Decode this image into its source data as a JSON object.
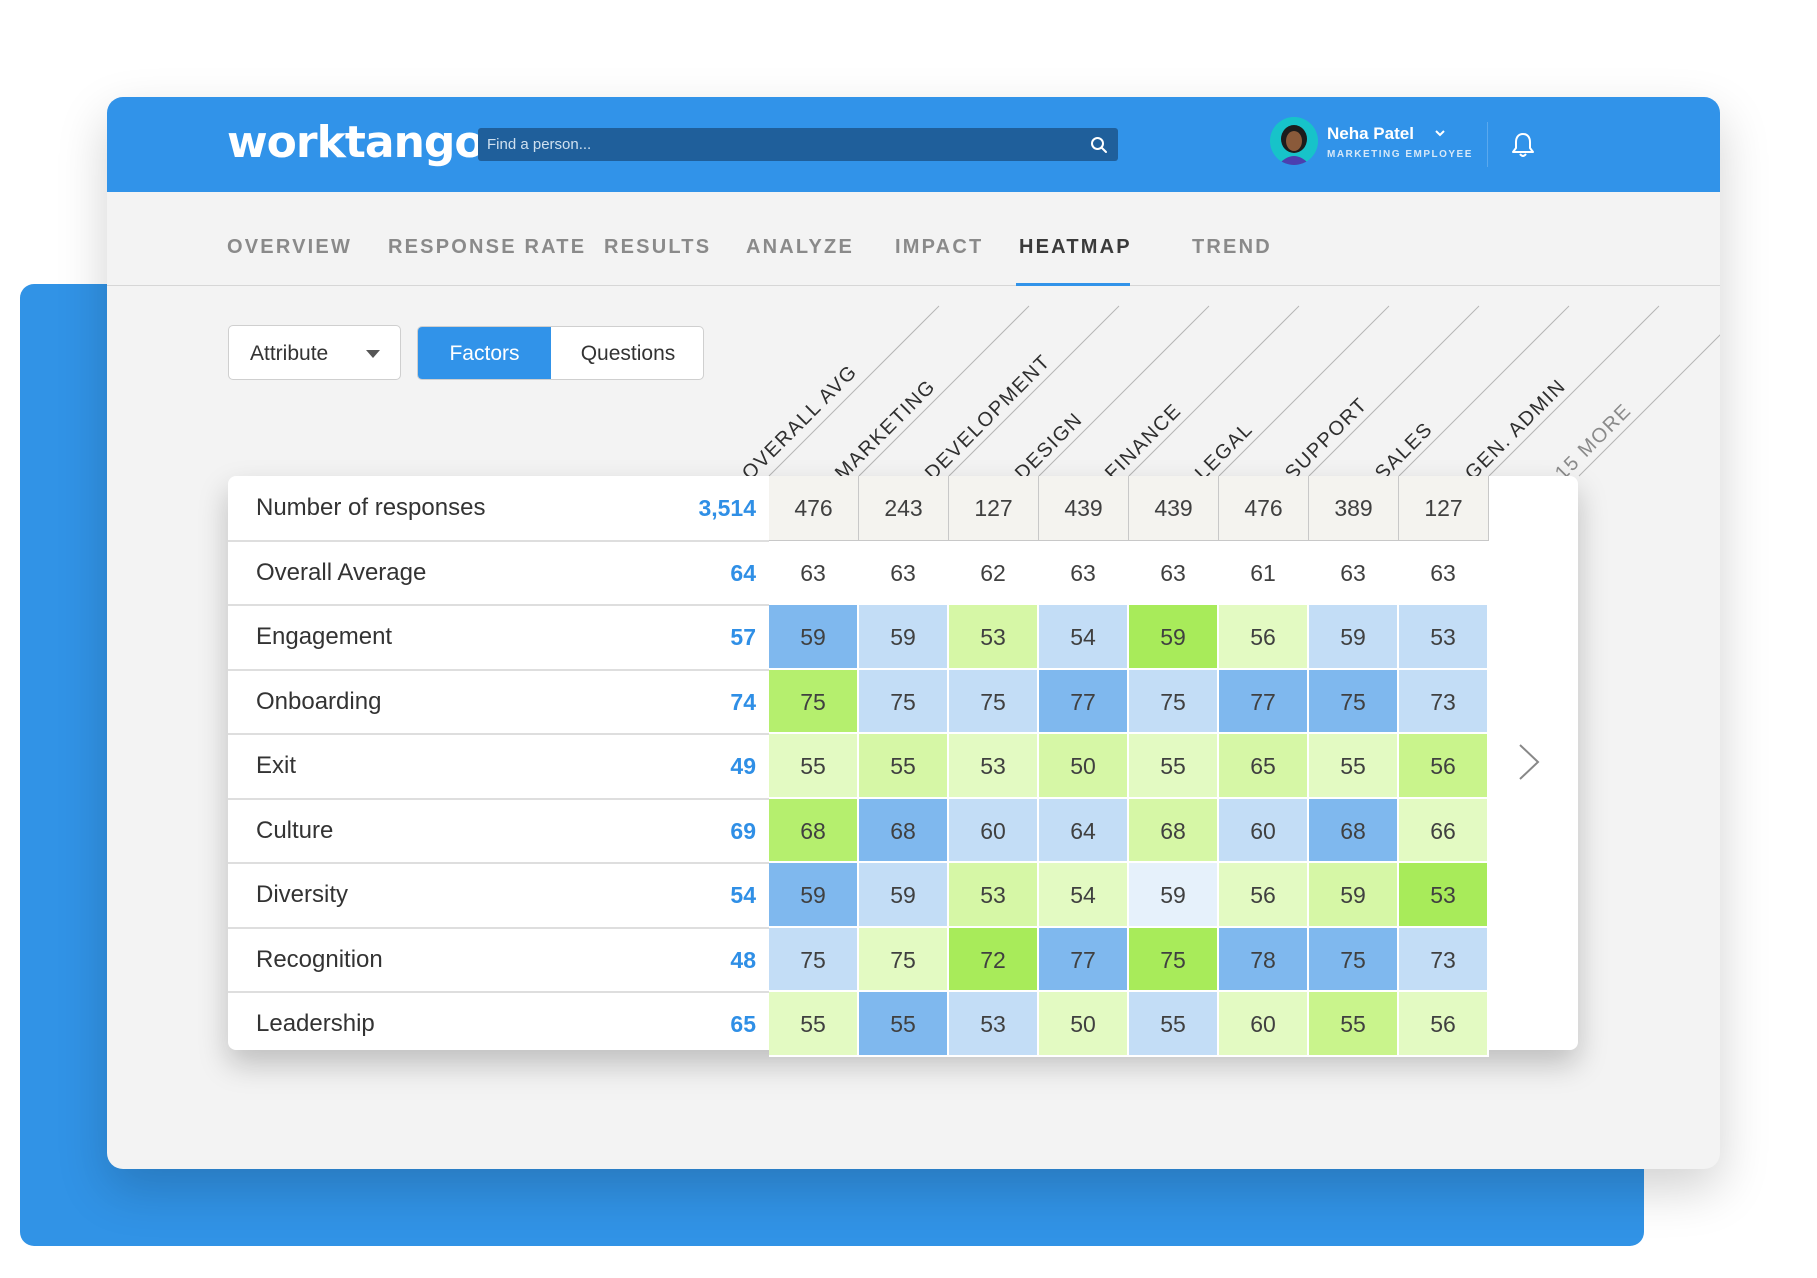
{
  "header": {
    "logo": "worktango",
    "search_placeholder": "Find a person...",
    "user_name": "Neha Patel",
    "user_role": "MARKETING EMPLOYEE"
  },
  "tabs": [
    "OVERVIEW",
    "RESPONSE RATE",
    "RESULTS",
    "ANALYZE",
    "IMPACT",
    "HEATMAP",
    "TREND"
  ],
  "active_tab": "HEATMAP",
  "controls": {
    "attribute_label": "Attribute",
    "toggle_left": "Factors",
    "toggle_right": "Questions",
    "toggle_active": "Factors"
  },
  "heatmap": {
    "columns": [
      "OVERALL AVG",
      "MARKETING",
      "DEVELOPMENT",
      "DESIGN",
      "FINANCE",
      "LEGAL",
      "SUPPORT",
      "SALES",
      "GEN. ADMIN",
      "15 MORE"
    ],
    "responses": {
      "label": "Number of responses",
      "total": "3,514",
      "values": [
        "476",
        "243",
        "127",
        "439",
        "439",
        "476",
        "389",
        "127"
      ]
    },
    "rows": [
      {
        "label": "Overall Average",
        "total": "64",
        "values": [
          "63",
          "63",
          "62",
          "63",
          "63",
          "61",
          "63",
          "63"
        ],
        "colors": [
          "#ffffff",
          "#ffffff",
          "#ffffff",
          "#ffffff",
          "#ffffff",
          "#ffffff",
          "#ffffff",
          "#ffffff"
        ]
      },
      {
        "label": "Engagement",
        "total": "57",
        "values": [
          "59",
          "59",
          "53",
          "54",
          "59",
          "56",
          "59",
          "53"
        ],
        "colors": [
          "#7fb8ee",
          "#c3ddf6",
          "#d6f7a6",
          "#c3ddf6",
          "#a8eb5a",
          "#e3fac2",
          "#c3ddf6",
          "#c3ddf6"
        ]
      },
      {
        "label": "Onboarding",
        "total": "74",
        "values": [
          "75",
          "75",
          "75",
          "77",
          "75",
          "77",
          "75",
          "73"
        ],
        "colors": [
          "#b5ef6e",
          "#c3ddf6",
          "#c3ddf6",
          "#7fb8ee",
          "#c3ddf6",
          "#7fb8ee",
          "#7fb8ee",
          "#c3ddf6"
        ]
      },
      {
        "label": "Exit",
        "total": "49",
        "values": [
          "55",
          "55",
          "53",
          "50",
          "55",
          "65",
          "55",
          "56"
        ],
        "colors": [
          "#e3fac2",
          "#d6f7a6",
          "#e3fac2",
          "#d6f7a6",
          "#e3fac2",
          "#d6f7a6",
          "#e3fac2",
          "#c9f48c"
        ]
      },
      {
        "label": "Culture",
        "total": "69",
        "values": [
          "68",
          "68",
          "60",
          "64",
          "68",
          "60",
          "68",
          "66"
        ],
        "colors": [
          "#b5ef6e",
          "#7fb8ee",
          "#c3ddf6",
          "#c3ddf6",
          "#d6f7a6",
          "#c3ddf6",
          "#7fb8ee",
          "#e3fac2"
        ]
      },
      {
        "label": "Diversity",
        "total": "54",
        "values": [
          "59",
          "59",
          "53",
          "54",
          "59",
          "56",
          "59",
          "53"
        ],
        "colors": [
          "#7fb8ee",
          "#c3ddf6",
          "#d6f7a6",
          "#e3fac2",
          "#e6f1fb",
          "#e3fac2",
          "#d6f7a6",
          "#a8eb5a"
        ]
      },
      {
        "label": "Recognition",
        "total": "48",
        "values": [
          "75",
          "75",
          "72",
          "77",
          "75",
          "78",
          "75",
          "73"
        ],
        "colors": [
          "#c3ddf6",
          "#e3fac2",
          "#a8eb5a",
          "#7fb8ee",
          "#a8eb5a",
          "#7fb8ee",
          "#7fb8ee",
          "#c3ddf6"
        ]
      },
      {
        "label": "Leadership",
        "total": "65",
        "values": [
          "55",
          "55",
          "53",
          "50",
          "55",
          "60",
          "55",
          "56"
        ],
        "colors": [
          "#e3fac2",
          "#7fb8ee",
          "#c3ddf6",
          "#e3fac2",
          "#c3ddf6",
          "#e3fac2",
          "#c9f48c",
          "#e3fac2"
        ]
      }
    ]
  }
}
